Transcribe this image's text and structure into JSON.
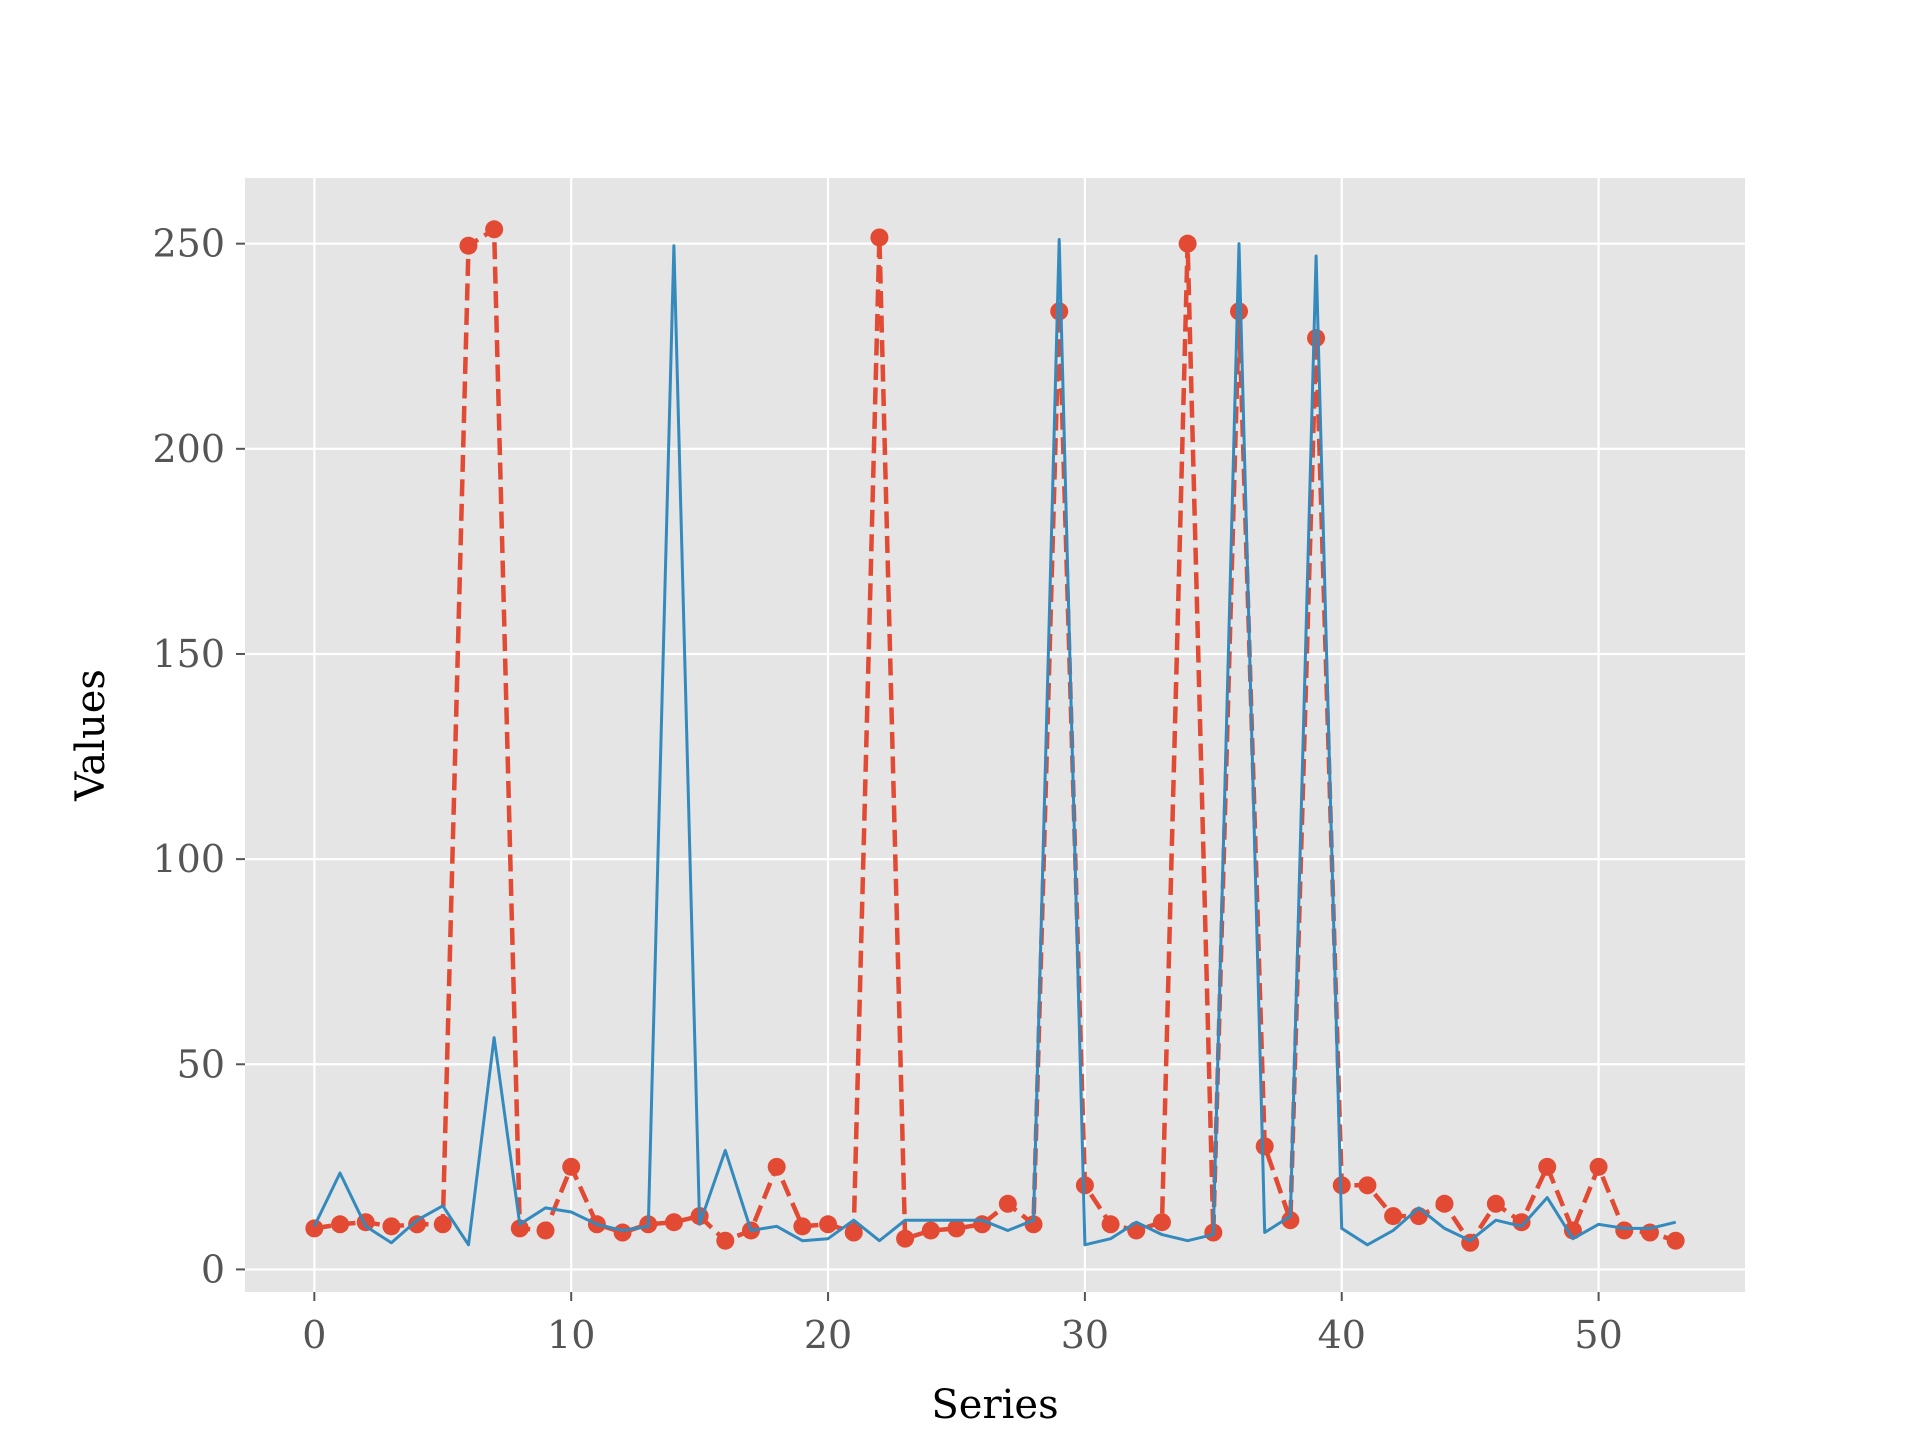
{
  "chart_data": {
    "type": "line",
    "title": "",
    "xlabel": "Series",
    "ylabel": "Values",
    "xlim": [
      -2.7,
      55.7
    ],
    "ylim": [
      -5.5,
      266
    ],
    "xticks": [
      0,
      10,
      20,
      30,
      40,
      50
    ],
    "yticks": [
      0,
      50,
      100,
      150,
      200,
      250
    ],
    "grid": true,
    "legend": "none",
    "x": [
      0,
      1,
      2,
      3,
      4,
      5,
      6,
      7,
      8,
      9,
      10,
      11,
      12,
      13,
      14,
      15,
      16,
      17,
      18,
      19,
      20,
      21,
      22,
      23,
      24,
      25,
      26,
      27,
      28,
      29,
      30,
      31,
      32,
      33,
      34,
      35,
      36,
      37,
      38,
      39,
      40,
      41,
      42,
      43,
      44,
      45,
      46,
      47,
      48,
      49,
      50,
      51,
      52,
      53
    ],
    "series": [
      {
        "name": "",
        "color": "#e24a33",
        "style": "dashed",
        "marker": "circle",
        "values": [
          10,
          11,
          11.5,
          10.5,
          11,
          11,
          249.5,
          253.5,
          10,
          9.5,
          25,
          11,
          9,
          11,
          11.5,
          13,
          7,
          9.5,
          25,
          10.5,
          11,
          9,
          251.5,
          7.5,
          9.5,
          10,
          11,
          16,
          11,
          233.5,
          20.5,
          11,
          9.5,
          11.5,
          250,
          9,
          233.5,
          30,
          12,
          227,
          20.5,
          20.5,
          13,
          13,
          16,
          6.5,
          16,
          11.5,
          25,
          9.5,
          25,
          9.5,
          9,
          7
        ]
      },
      {
        "name": "",
        "color": "#348abd",
        "style": "solid",
        "marker": "none",
        "values": [
          10.5,
          23.5,
          10.5,
          6.5,
          12,
          15.5,
          6,
          56.5,
          11,
          15,
          14,
          11,
          9.5,
          10.5,
          249.5,
          11,
          29,
          9.5,
          10.5,
          7,
          7.5,
          12,
          7,
          12,
          12,
          12,
          12,
          9.5,
          12,
          251,
          6,
          7.5,
          11.5,
          8.5,
          7,
          8.5,
          250,
          9,
          13,
          247,
          10,
          6,
          9.5,
          15,
          10,
          7,
          12,
          10.5,
          17.5,
          7.5,
          11,
          10,
          10,
          11.5
        ]
      }
    ]
  }
}
